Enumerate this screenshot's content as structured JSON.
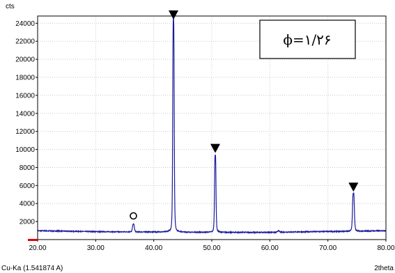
{
  "chart_data": {
    "type": "line",
    "title": "",
    "xlabel": "2theta",
    "ylabel": "cts",
    "x_caption": "Cu-Ka (1.541874 A)",
    "xlim": [
      20,
      80
    ],
    "ylim": [
      0,
      24000
    ],
    "x_ticks": [
      "20.00",
      "30.00",
      "40.00",
      "50.00",
      "60.00",
      "70.00",
      "80.00"
    ],
    "y_ticks": [
      "2000",
      "4000",
      "6000",
      "8000",
      "10000",
      "12000",
      "14000",
      "16000",
      "18000",
      "20000",
      "22000",
      "24000"
    ],
    "grid": true,
    "line_color": "#1a1a9c",
    "baseline": 850,
    "background_points": [
      [
        20,
        980
      ],
      [
        25,
        930
      ],
      [
        30,
        880
      ],
      [
        34,
        860
      ],
      [
        38,
        850
      ],
      [
        42,
        840
      ],
      [
        46,
        820
      ],
      [
        50,
        810
      ],
      [
        54,
        800
      ],
      [
        58,
        800
      ],
      [
        62,
        820
      ],
      [
        66,
        860
      ],
      [
        70,
        900
      ],
      [
        74,
        920
      ],
      [
        78,
        960
      ],
      [
        80,
        980
      ]
    ],
    "peaks": [
      {
        "x": 36.5,
        "height": 1700,
        "marker": "circle"
      },
      {
        "x": 43.4,
        "height": 24100,
        "marker": "triangle"
      },
      {
        "x": 50.6,
        "height": 9300,
        "marker": "triangle"
      },
      {
        "x": 61.5,
        "height": 1000,
        "marker": "none"
      },
      {
        "x": 74.4,
        "height": 5000,
        "marker": "triangle"
      }
    ],
    "annotation": "ϕ=۱/۲۶"
  }
}
